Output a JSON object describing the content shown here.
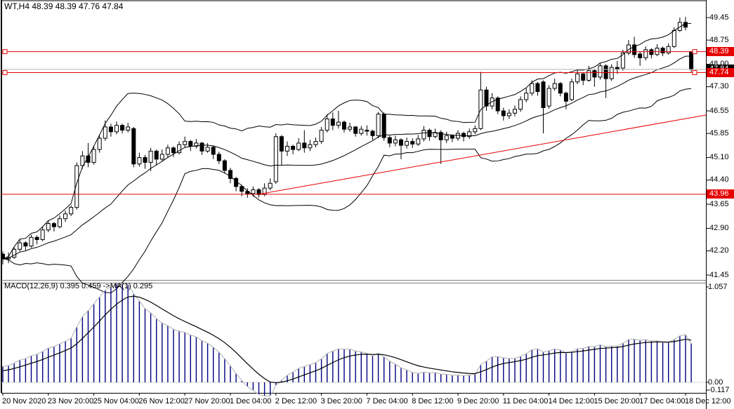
{
  "window": {
    "title": "WT,H4  48.39 48.39 47.76 47.84"
  },
  "macd_pane": {
    "label": "MACD(12,26,9) 0.395 0.459  ->MA(1) 0.295"
  },
  "chart_data": {
    "type": "candlestick",
    "symbol": "WT",
    "timeframe": "H4",
    "ohlc_display": {
      "open": "48.39",
      "high": "48.39",
      "low": "47.76",
      "close": "47.84"
    },
    "x_ticks": [
      "20 Nov 2020",
      "23 Nov 20:00",
      "25 Nov 04:00",
      "26 Nov 12:00",
      "27 Nov 20:00",
      "1 Dec 04:00",
      "2 Dec 12:00",
      "3 Dec 20:00",
      "7 Dec 04:00",
      "8 Dec 12:00",
      "9 Dec 20:00",
      "11 Dec 04:00",
      "14 Dec 12:00",
      "15 Dec 20:00",
      "17 Dec 04:00",
      "18 Dec 12:00"
    ],
    "bars_per_x_tick": 8,
    "y_ticks": [
      49.45,
      48.75,
      48.0,
      47.3,
      46.55,
      45.85,
      45.1,
      44.4,
      43.65,
      42.9,
      42.2,
      41.45
    ],
    "y_range": {
      "max": 49.45,
      "min": 41.45
    },
    "candles": [
      [
        42.1,
        42.18,
        41.78,
        41.95
      ],
      [
        41.95,
        42.15,
        41.82,
        42.0
      ],
      [
        42.0,
        42.32,
        41.95,
        42.25
      ],
      [
        42.25,
        42.55,
        42.18,
        42.45
      ],
      [
        42.45,
        42.5,
        42.22,
        42.35
      ],
      [
        42.35,
        42.7,
        42.3,
        42.62
      ],
      [
        42.62,
        42.68,
        42.4,
        42.55
      ],
      [
        42.55,
        42.95,
        42.5,
        42.85
      ],
      [
        42.85,
        43.15,
        42.78,
        43.05
      ],
      [
        43.05,
        43.1,
        42.8,
        42.95
      ],
      [
        42.95,
        43.3,
        42.9,
        43.2
      ],
      [
        43.2,
        43.45,
        43.1,
        43.35
      ],
      [
        43.35,
        43.62,
        43.28,
        43.55
      ],
      [
        43.55,
        44.95,
        43.48,
        44.85
      ],
      [
        44.85,
        45.3,
        44.75,
        45.15
      ],
      [
        45.15,
        45.55,
        44.8,
        44.95
      ],
      [
        44.95,
        45.45,
        44.88,
        45.35
      ],
      [
        45.35,
        45.8,
        45.25,
        45.7
      ],
      [
        45.7,
        46.25,
        45.62,
        46.05
      ],
      [
        46.05,
        46.15,
        45.75,
        45.9
      ],
      [
        45.9,
        46.22,
        45.82,
        46.1
      ],
      [
        46.1,
        46.15,
        45.85,
        45.95
      ],
      [
        45.95,
        46.18,
        45.88,
        46.05
      ],
      [
        46.0,
        46.05,
        44.8,
        44.9
      ],
      [
        44.9,
        45.25,
        44.82,
        45.1
      ],
      [
        45.1,
        45.18,
        44.75,
        44.95
      ],
      [
        44.95,
        45.4,
        44.68,
        45.3
      ],
      [
        45.3,
        45.35,
        44.85,
        45.05
      ],
      [
        45.05,
        45.35,
        45.0,
        45.2
      ],
      [
        45.2,
        45.5,
        45.1,
        45.4
      ],
      [
        45.4,
        45.45,
        45.12,
        45.25
      ],
      [
        45.25,
        45.6,
        45.2,
        45.5
      ],
      [
        45.5,
        45.75,
        45.4,
        45.6
      ],
      [
        45.6,
        45.65,
        45.3,
        45.45
      ],
      [
        45.45,
        45.68,
        45.38,
        45.55
      ],
      [
        45.55,
        45.58,
        45.18,
        45.3
      ],
      [
        45.3,
        45.55,
        45.25,
        45.42
      ],
      [
        45.42,
        45.48,
        45.05,
        45.2
      ],
      [
        45.2,
        45.28,
        44.9,
        45.0
      ],
      [
        45.0,
        45.05,
        44.6,
        44.7
      ],
      [
        44.7,
        44.78,
        44.3,
        44.45
      ],
      [
        44.45,
        44.5,
        44.05,
        44.2
      ],
      [
        44.2,
        44.25,
        43.9,
        44.05
      ],
      [
        44.05,
        44.15,
        43.85,
        43.98
      ],
      [
        43.98,
        44.2,
        43.88,
        44.1
      ],
      [
        44.1,
        44.15,
        43.86,
        43.95
      ],
      [
        43.95,
        44.3,
        43.9,
        44.15
      ],
      [
        44.15,
        44.45,
        44.08,
        44.3
      ],
      [
        44.35,
        45.85,
        44.28,
        45.75
      ],
      [
        45.75,
        45.8,
        44.85,
        45.3
      ],
      [
        45.3,
        45.6,
        45.15,
        45.45
      ],
      [
        45.45,
        45.5,
        45.2,
        45.35
      ],
      [
        45.35,
        45.7,
        45.3,
        45.55
      ],
      [
        45.55,
        45.95,
        45.25,
        45.4
      ],
      [
        45.4,
        45.65,
        45.3,
        45.5
      ],
      [
        45.5,
        45.72,
        45.42,
        45.6
      ],
      [
        45.6,
        46.05,
        45.52,
        45.95
      ],
      [
        45.95,
        46.45,
        45.88,
        46.3
      ],
      [
        46.3,
        46.5,
        45.95,
        46.1
      ],
      [
        46.1,
        46.55,
        46.0,
        46.2
      ],
      [
        46.2,
        46.25,
        45.88,
        45.98
      ],
      [
        45.98,
        46.18,
        45.9,
        46.05
      ],
      [
        46.05,
        46.08,
        45.75,
        45.85
      ],
      [
        45.85,
        46.08,
        45.78,
        45.98
      ],
      [
        45.95,
        46.1,
        45.78,
        45.92
      ],
      [
        45.92,
        45.96,
        45.65,
        45.78
      ],
      [
        45.78,
        46.52,
        45.7,
        46.45
      ],
      [
        46.45,
        46.5,
        45.62,
        45.72
      ],
      [
        45.72,
        45.78,
        45.42,
        45.55
      ],
      [
        45.55,
        45.78,
        45.45,
        45.65
      ],
      [
        45.65,
        45.7,
        45.05,
        45.48
      ],
      [
        45.48,
        45.72,
        45.38,
        45.6
      ],
      [
        45.6,
        45.7,
        45.4,
        45.52
      ],
      [
        45.52,
        45.8,
        45.46,
        45.68
      ],
      [
        45.68,
        46.08,
        45.6,
        45.95
      ],
      [
        45.95,
        46.0,
        45.62,
        45.75
      ],
      [
        45.75,
        46.0,
        45.7,
        45.88
      ],
      [
        45.88,
        45.95,
        44.9,
        45.65
      ],
      [
        45.65,
        45.9,
        45.55,
        45.78
      ],
      [
        45.78,
        45.82,
        45.58,
        45.7
      ],
      [
        45.7,
        45.95,
        45.62,
        45.85
      ],
      [
        45.85,
        45.9,
        45.6,
        45.75
      ],
      [
        45.75,
        46.0,
        45.68,
        45.9
      ],
      [
        45.9,
        46.1,
        45.82,
        46.0
      ],
      [
        46.0,
        47.76,
        45.95,
        47.2
      ],
      [
        47.2,
        47.3,
        46.55,
        46.7
      ],
      [
        46.7,
        47.1,
        46.6,
        46.95
      ],
      [
        46.95,
        47.0,
        46.45,
        46.55
      ],
      [
        46.55,
        46.65,
        46.25,
        46.4
      ],
      [
        46.4,
        46.6,
        46.3,
        46.48
      ],
      [
        46.48,
        46.72,
        46.38,
        46.6
      ],
      [
        46.6,
        47.0,
        46.52,
        46.9
      ],
      [
        46.9,
        47.25,
        46.82,
        47.1
      ],
      [
        47.1,
        47.5,
        47.02,
        47.4
      ],
      [
        47.4,
        47.45,
        47.02,
        47.15
      ],
      [
        47.45,
        47.5,
        45.85,
        46.65
      ],
      [
        46.7,
        47.35,
        46.62,
        47.25
      ],
      [
        47.25,
        47.55,
        47.18,
        47.4
      ],
      [
        47.4,
        47.45,
        47.0,
        47.1
      ],
      [
        47.1,
        47.15,
        46.6,
        46.85
      ],
      [
        46.9,
        47.55,
        46.85,
        47.45
      ],
      [
        47.45,
        47.8,
        47.38,
        47.7
      ],
      [
        47.7,
        47.75,
        47.35,
        47.5
      ],
      [
        47.5,
        47.95,
        47.45,
        47.8
      ],
      [
        47.8,
        47.85,
        47.3,
        47.6
      ],
      [
        47.6,
        48.05,
        47.52,
        47.95
      ],
      [
        47.95,
        48.0,
        46.95,
        47.55
      ],
      [
        47.55,
        48.0,
        47.48,
        47.9
      ],
      [
        47.9,
        48.1,
        47.7,
        47.85
      ],
      [
        47.88,
        48.45,
        47.8,
        48.35
      ],
      [
        48.35,
        48.75,
        48.28,
        48.6
      ],
      [
        48.6,
        48.85,
        48.2,
        48.3
      ],
      [
        48.32,
        48.4,
        47.95,
        48.2
      ],
      [
        48.2,
        48.55,
        48.12,
        48.45
      ],
      [
        48.45,
        48.5,
        48.18,
        48.3
      ],
      [
        48.3,
        48.62,
        48.25,
        48.5
      ],
      [
        48.5,
        48.55,
        48.25,
        48.35
      ],
      [
        48.35,
        48.65,
        48.3,
        48.55
      ],
      [
        48.55,
        49.15,
        48.5,
        49.05
      ],
      [
        49.05,
        49.45,
        49.0,
        49.3
      ],
      [
        49.3,
        49.47,
        49.05,
        49.15
      ],
      [
        48.39,
        48.39,
        47.76,
        47.84
      ]
    ],
    "bollinger": {
      "period": 20,
      "deviations": 2,
      "color": "#000000"
    },
    "horizontal_levels": [
      {
        "price": 48.39,
        "label": "48.39",
        "color": "#e60000",
        "handles": true
      },
      {
        "price": 47.74,
        "label": "47.74",
        "color": "#e60000",
        "handles": true
      },
      {
        "price": 43.96,
        "label": "43.96",
        "color": "#e60000",
        "handles": false
      }
    ],
    "current_price": {
      "value": 47.84,
      "label": "47.84",
      "line_color": "#b4b4b4",
      "badge_color": "#000000"
    },
    "trendline": {
      "from_bar": 45,
      "from_price": 43.96,
      "to_right_edge_price": 46.42,
      "color": "#e60000"
    },
    "macd": {
      "fast": 12,
      "slow": 26,
      "signal": 9,
      "scale": [
        {
          "label": "1.057",
          "value": 1.057
        },
        {
          "label": "0.00",
          "value": 0
        },
        {
          "label": "-0.117",
          "value": -0.117
        }
      ],
      "histogram_color": "#000080",
      "macd_line_color": "#bdbdbd",
      "signal_line_color": "#000000"
    }
  }
}
